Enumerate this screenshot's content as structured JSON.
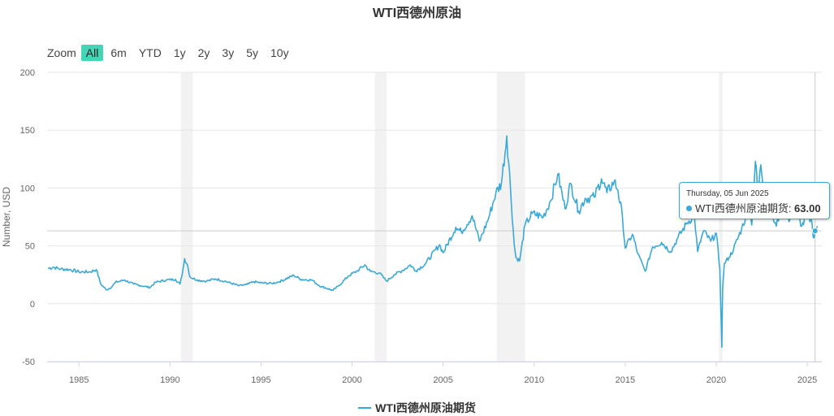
{
  "title": "WTI西德州原油",
  "zoom": {
    "label": "Zoom",
    "buttons": [
      "All",
      "6m",
      "YTD",
      "1y",
      "2y",
      "3y",
      "5y",
      "10y"
    ],
    "active": "All"
  },
  "colors": {
    "series": "#3aa9d6",
    "zoom_active": "#45d4b5",
    "band": "#f2f2f2"
  },
  "legend": {
    "label": "WTI西德州原油期货"
  },
  "tooltip": {
    "date": "Thursday, 05 Jun 2025",
    "series_label": "WTI西德州原油期货: ",
    "value": "63.00"
  },
  "chart_data": {
    "type": "line",
    "title": "WTI西德州原油",
    "ylabel": "Number, USD",
    "xlabel": "",
    "ylim": [
      -50,
      200
    ],
    "xlim": [
      1983.25,
      2025.8
    ],
    "y_ticks": [
      -50,
      0,
      50,
      100,
      150,
      200
    ],
    "x_ticks": [
      1985,
      1990,
      1995,
      2000,
      2005,
      2010,
      2015,
      2020,
      2025
    ],
    "grid": true,
    "legend_position": "bottom",
    "crosshair": {
      "x": 2025.43,
      "y": 63.0
    },
    "shaded_periods": [
      [
        1990.6,
        1991.25
      ],
      [
        2001.25,
        2001.9
      ],
      [
        2007.95,
        2009.5
      ],
      [
        2020.15,
        2020.35
      ]
    ],
    "series": [
      {
        "name": "WTI西德州原油期货",
        "points": [
          [
            1983.3,
            30.5
          ],
          [
            1983.6,
            31.5
          ],
          [
            1984.0,
            30.0
          ],
          [
            1984.5,
            29.5
          ],
          [
            1985.0,
            27.5
          ],
          [
            1985.6,
            27.5
          ],
          [
            1985.95,
            29.5
          ],
          [
            1986.2,
            17.0
          ],
          [
            1986.5,
            12.0
          ],
          [
            1986.8,
            14.5
          ],
          [
            1987.0,
            18.5
          ],
          [
            1987.5,
            20.5
          ],
          [
            1988.0,
            17.0
          ],
          [
            1988.6,
            15.0
          ],
          [
            1988.9,
            14.0
          ],
          [
            1989.2,
            18.5
          ],
          [
            1989.8,
            20.5
          ],
          [
            1990.3,
            21.0
          ],
          [
            1990.55,
            17.0
          ],
          [
            1990.7,
            28.0
          ],
          [
            1990.8,
            39.0
          ],
          [
            1990.95,
            34.0
          ],
          [
            1991.1,
            23.0
          ],
          [
            1991.5,
            20.5
          ],
          [
            1992.0,
            19.5
          ],
          [
            1992.5,
            21.5
          ],
          [
            1993.0,
            19.5
          ],
          [
            1993.8,
            15.5
          ],
          [
            1994.2,
            16.5
          ],
          [
            1994.6,
            19.0
          ],
          [
            1995.0,
            18.0
          ],
          [
            1995.6,
            17.5
          ],
          [
            1996.0,
            19.0
          ],
          [
            1996.8,
            24.5
          ],
          [
            1997.2,
            21.0
          ],
          [
            1997.8,
            20.5
          ],
          [
            1998.2,
            15.5
          ],
          [
            1998.95,
            11.5
          ],
          [
            1999.3,
            16.0
          ],
          [
            1999.8,
            24.0
          ],
          [
            2000.3,
            28.5
          ],
          [
            2000.7,
            33.5
          ],
          [
            2001.0,
            28.0
          ],
          [
            2001.5,
            26.5
          ],
          [
            2001.9,
            19.5
          ],
          [
            2002.3,
            25.0
          ],
          [
            2002.8,
            29.0
          ],
          [
            2003.2,
            33.5
          ],
          [
            2003.5,
            28.5
          ],
          [
            2004.0,
            34.0
          ],
          [
            2004.8,
            51.0
          ],
          [
            2005.0,
            44.0
          ],
          [
            2005.7,
            66.0
          ],
          [
            2006.0,
            62.0
          ],
          [
            2006.6,
            76.0
          ],
          [
            2007.0,
            54.0
          ],
          [
            2007.5,
            74.0
          ],
          [
            2007.9,
            96.0
          ],
          [
            2008.2,
            104.0
          ],
          [
            2008.5,
            145.0
          ],
          [
            2008.7,
            100.0
          ],
          [
            2008.9,
            52.0
          ],
          [
            2009.0,
            40.0
          ],
          [
            2009.2,
            37.0
          ],
          [
            2009.5,
            68.0
          ],
          [
            2009.9,
            78.0
          ],
          [
            2010.5,
            75.0
          ],
          [
            2010.9,
            89.0
          ],
          [
            2011.3,
            112.0
          ],
          [
            2011.7,
            82.0
          ],
          [
            2012.0,
            104.0
          ],
          [
            2012.45,
            80.0
          ],
          [
            2012.8,
            91.0
          ],
          [
            2013.3,
            92.0
          ],
          [
            2013.7,
            108.0
          ],
          [
            2014.0,
            96.0
          ],
          [
            2014.4,
            106.0
          ],
          [
            2014.6,
            98.0
          ],
          [
            2014.85,
            75.0
          ],
          [
            2015.0,
            48.0
          ],
          [
            2015.4,
            60.0
          ],
          [
            2015.7,
            43.0
          ],
          [
            2016.1,
            28.0
          ],
          [
            2016.5,
            49.0
          ],
          [
            2017.0,
            53.0
          ],
          [
            2017.5,
            45.0
          ],
          [
            2017.9,
            57.0
          ],
          [
            2018.4,
            70.0
          ],
          [
            2018.8,
            76.0
          ],
          [
            2018.98,
            45.0
          ],
          [
            2019.3,
            63.0
          ],
          [
            2019.7,
            54.0
          ],
          [
            2020.0,
            61.0
          ],
          [
            2020.2,
            30.0
          ],
          [
            2020.31,
            -37.6
          ],
          [
            2020.35,
            12.0
          ],
          [
            2020.45,
            35.0
          ],
          [
            2020.7,
            40.0
          ],
          [
            2020.95,
            47.0
          ],
          [
            2021.4,
            65.0
          ],
          [
            2021.8,
            83.0
          ],
          [
            2021.95,
            68.0
          ],
          [
            2022.15,
            123.0
          ],
          [
            2022.3,
            95.0
          ],
          [
            2022.45,
            120.0
          ],
          [
            2022.7,
            88.0
          ],
          [
            2022.95,
            80.0
          ],
          [
            2023.3,
            67.0
          ],
          [
            2023.7,
            90.0
          ],
          [
            2024.0,
            71.0
          ],
          [
            2024.3,
            86.0
          ],
          [
            2024.7,
            67.0
          ],
          [
            2025.0,
            76.0
          ],
          [
            2025.25,
            71.0
          ],
          [
            2025.33,
            57.0
          ],
          [
            2025.43,
            63.0
          ],
          [
            2025.55,
            67.0
          ]
        ]
      }
    ]
  }
}
